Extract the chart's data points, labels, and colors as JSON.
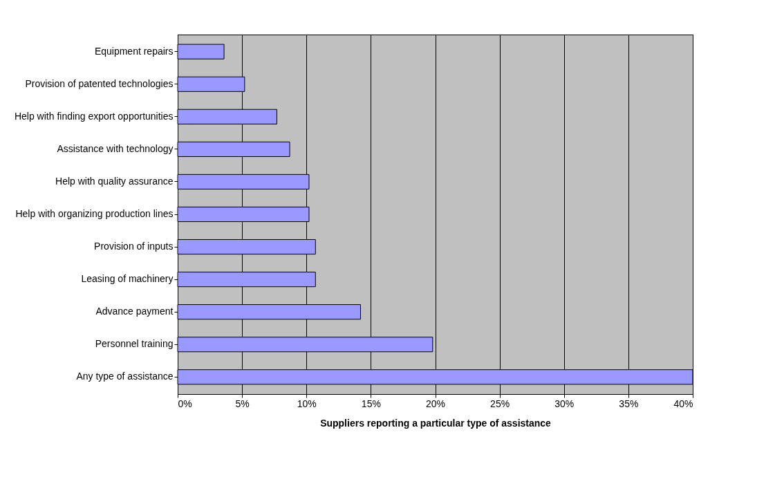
{
  "chart_data": {
    "type": "bar",
    "orientation": "horizontal",
    "xlabel": "Suppliers reporting a particular type of assistance",
    "categories": [
      "Equipment repairs",
      "Provision of patented technologies",
      "Help with finding export opportunities",
      "Assistance with technology",
      "Help with quality assurance",
      "Help with organizing production lines",
      "Provision of inputs",
      "Leasing of machinery",
      "Advance payment",
      "Personnel training",
      "Any type of assistance"
    ],
    "values": [
      3.6,
      5.2,
      7.7,
      8.7,
      10.2,
      10.2,
      10.7,
      10.7,
      14.2,
      19.8,
      40
    ],
    "color": "#9999ff",
    "xlim": [
      0,
      40
    ],
    "xticks": [
      {
        "value": 0,
        "label": "0%"
      },
      {
        "value": 5,
        "label": "5%"
      },
      {
        "value": 10,
        "label": "10%"
      },
      {
        "value": 15,
        "label": "15%"
      },
      {
        "value": 20,
        "label": "20%"
      },
      {
        "value": 25,
        "label": "25%"
      },
      {
        "value": 30,
        "label": "30%"
      },
      {
        "value": 35,
        "label": "35%"
      },
      {
        "value": 40,
        "label": "40%"
      }
    ],
    "grid": "x"
  }
}
